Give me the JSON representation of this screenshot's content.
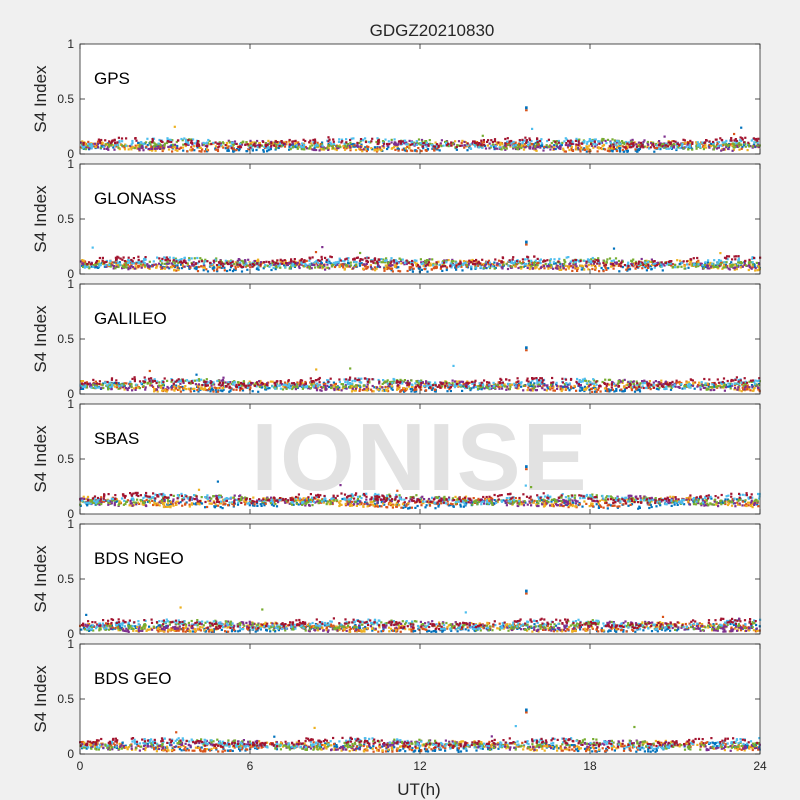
{
  "chart_data": {
    "type": "scatter",
    "title": "GDGZ20210830",
    "xlabel": "UT(h)",
    "ylabel": "S4 Index",
    "xlim": [
      0,
      24
    ],
    "ylim": [
      0,
      1
    ],
    "xticks": [
      "0",
      "6",
      "12",
      "18",
      "24"
    ],
    "yticks": [
      "0",
      "0.5",
      "1"
    ],
    "watermark": "IONISE",
    "series_colors": [
      "#0072bd",
      "#d95319",
      "#edb120",
      "#7e2f8e",
      "#77ac30",
      "#4dbeee",
      "#a2142f"
    ],
    "panels": [
      {
        "name": "GPS",
        "baseline": 0.08,
        "spike": {
          "x": 15.75,
          "y": 0.42
        },
        "highlight": false
      },
      {
        "name": "GLONASS",
        "baseline": 0.09,
        "spike": {
          "x": 15.75,
          "y": 0.29
        },
        "highlight": false
      },
      {
        "name": "GALILEO",
        "baseline": 0.08,
        "spike": {
          "x": 15.75,
          "y": 0.42
        },
        "highlight": false
      },
      {
        "name": "SBAS",
        "baseline": 0.12,
        "spike": {
          "x": 15.75,
          "y": 0.43
        },
        "highlight": true
      },
      {
        "name": "BDS NGEO",
        "baseline": 0.07,
        "spike": {
          "x": 15.75,
          "y": 0.39
        },
        "highlight": false
      },
      {
        "name": "BDS GEO",
        "baseline": 0.08,
        "spike": {
          "x": 15.75,
          "y": 0.4
        },
        "highlight": false
      }
    ]
  }
}
